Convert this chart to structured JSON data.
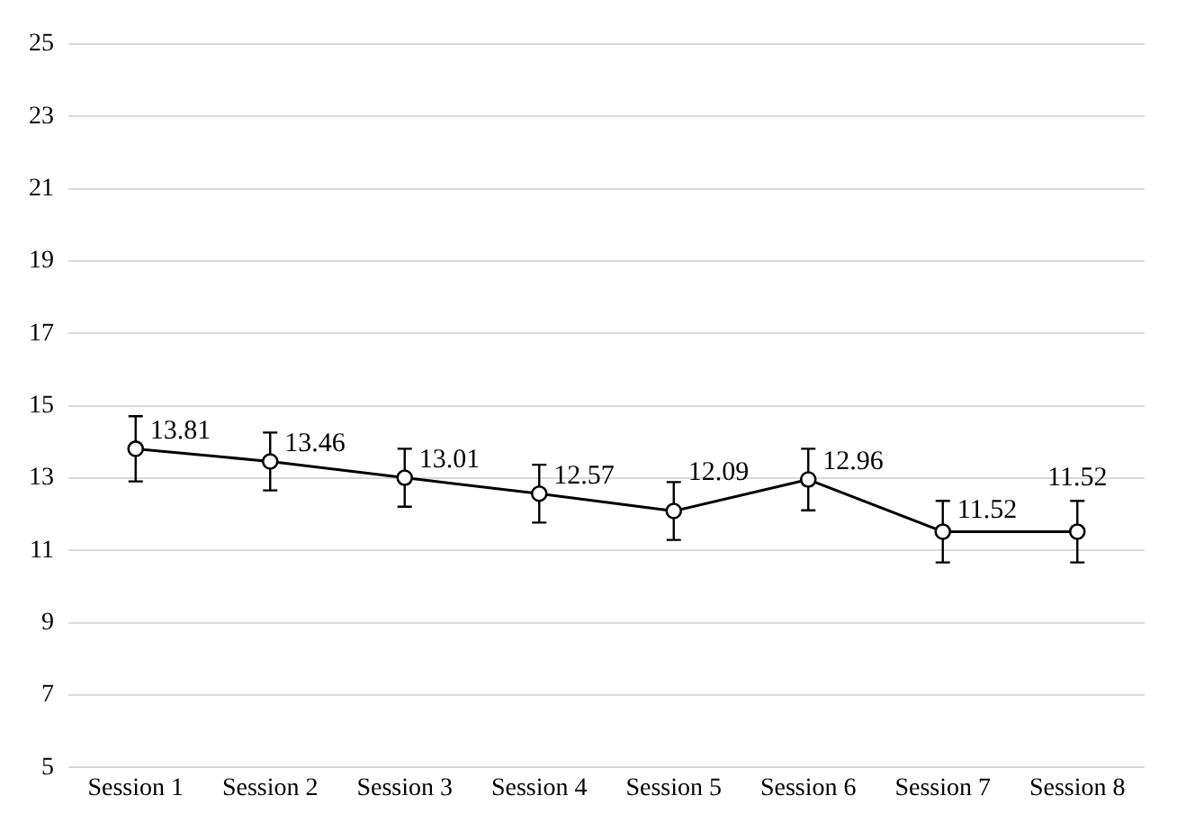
{
  "chart_data": {
    "type": "line",
    "categories": [
      "Session 1",
      "Session 2",
      "Session 3",
      "Session 4",
      "Session 5",
      "Session 6",
      "Session 7",
      "Session 8"
    ],
    "series": [
      {
        "color": "#000000",
        "values": [
          13.81,
          13.46,
          13.01,
          12.57,
          12.09,
          12.96,
          11.52,
          11.52
        ],
        "errors": [
          0.9,
          0.8,
          0.8,
          0.8,
          0.8,
          0.85,
          0.85,
          0.85
        ]
      }
    ],
    "ylim": [
      5,
      25
    ],
    "yticks": [
      5,
      7,
      9,
      11,
      13,
      15,
      17,
      19,
      21,
      23,
      25
    ],
    "grid": "y",
    "marker": "circle",
    "line_style": "solid",
    "data_labels": true,
    "legend": false
  }
}
